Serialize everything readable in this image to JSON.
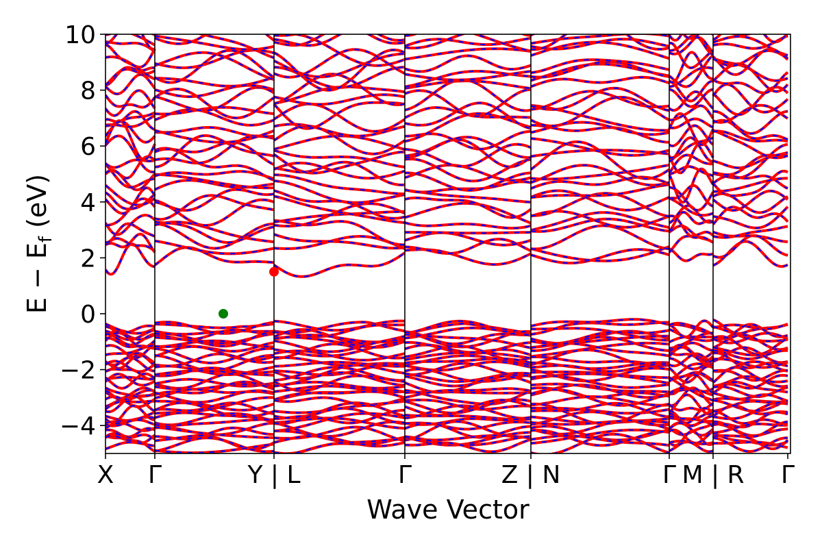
{
  "chart_data": {
    "type": "line",
    "title": "",
    "xlabel": "Wave Vector",
    "ylabel_parts": [
      "E − E",
      "f",
      " (eV)"
    ],
    "ylim": [
      -5,
      10
    ],
    "yticks": [
      -4,
      -2,
      0,
      2,
      4,
      6,
      8,
      10
    ],
    "ytick_labels": [
      "−4",
      "−2",
      "0",
      "2",
      "4",
      "6",
      "8",
      "10"
    ],
    "xlim": [
      0,
      1
    ],
    "kpath_labels": [
      "X",
      "Γ",
      "Y | L",
      "Γ",
      "Z | N",
      "Γ",
      "M | R",
      "Γ"
    ],
    "kpath_positions": [
      0.0,
      0.072,
      0.246,
      0.437,
      0.621,
      0.823,
      0.887,
      0.996
    ],
    "kpath_label_positions": [
      0.0,
      0.072,
      0.246,
      0.437,
      0.621,
      0.823,
      0.887,
      0.996
    ],
    "segments": [
      [
        0.0,
        0.072
      ],
      [
        0.072,
        0.246
      ],
      [
        0.246,
        0.437
      ],
      [
        0.437,
        0.621
      ],
      [
        0.621,
        0.823
      ],
      [
        0.823,
        0.887
      ],
      [
        0.887,
        0.996
      ]
    ],
    "series": [
      {
        "color": "#ff0000",
        "style": "solid"
      },
      {
        "color": "#0000ff",
        "style": "dashed"
      }
    ],
    "markers": [
      {
        "label": "CBM",
        "x": 0.246,
        "y": 1.5,
        "color": "#ff0000"
      },
      {
        "label": "VBM",
        "x": 0.172,
        "y": 0.0,
        "color": "#008000"
      }
    ],
    "conduction_band_count": 32,
    "conduction_band_range": [
      1.5,
      10
    ],
    "valence_band_count": 34,
    "valence_band_range": [
      -4.6,
      0
    ],
    "grid": false,
    "legend": "none"
  }
}
